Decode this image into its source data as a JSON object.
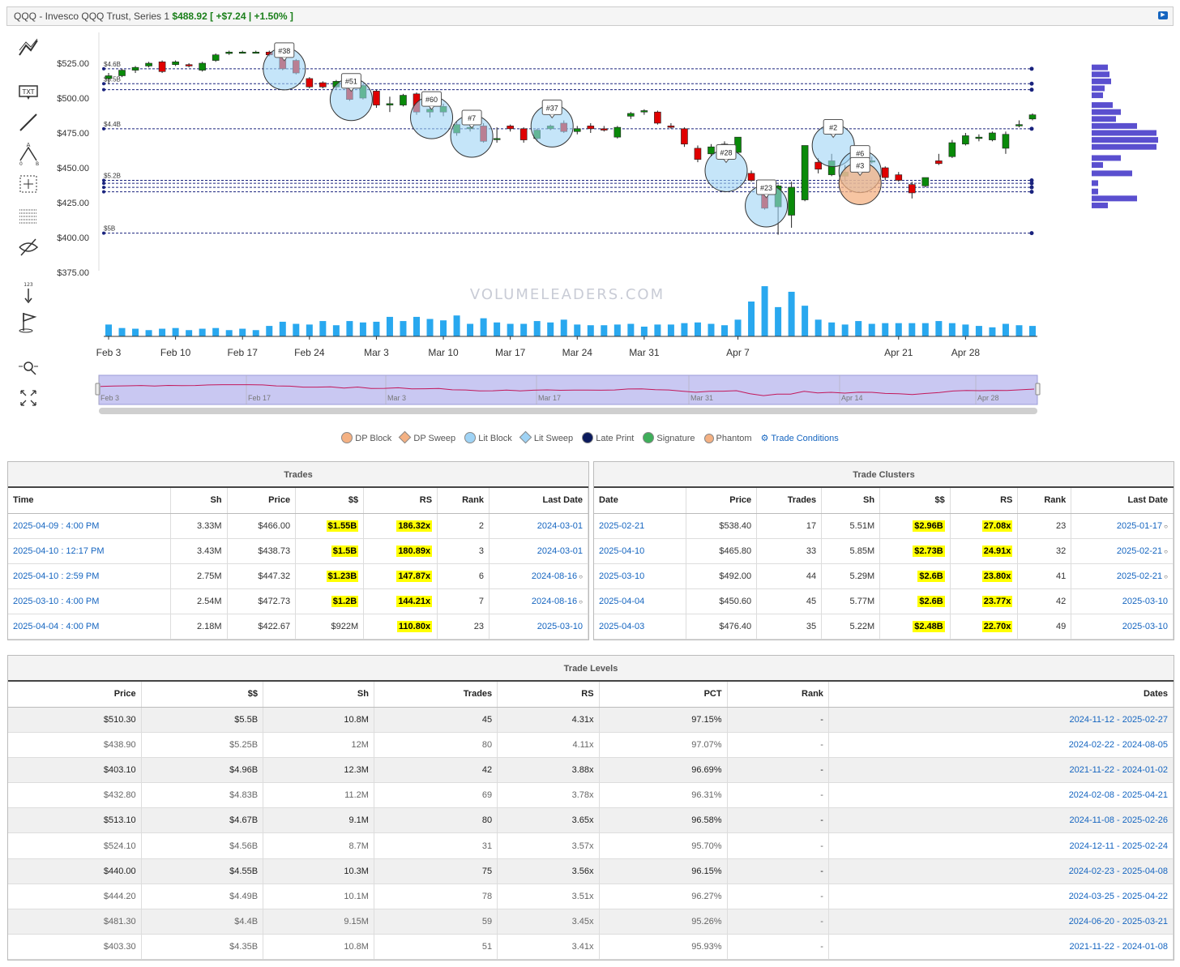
{
  "title": {
    "text": "QQQ - Invesco QQQ Trust, Series 1",
    "price": "$488.92",
    "change": "[ +$7.24 | +1.50% ]"
  },
  "toolbar": [
    "trendline-icon",
    "text-icon",
    "line-icon",
    "abc-pattern-icon",
    "crosshair-box-icon",
    "grid-icon",
    "hide-icon",
    "counter-icon",
    "flag-icon",
    "magnifier-icon",
    "expand-icon"
  ],
  "chart_data": {
    "type": "candlestick",
    "title": "",
    "y_ticks": [
      "$525.00",
      "$500.00",
      "$475.00",
      "$450.00",
      "$425.00",
      "$400.00",
      "$375.00"
    ],
    "ylim": [
      375,
      525
    ],
    "x_ticks": [
      "Feb 3",
      "Feb 10",
      "Feb 17",
      "Feb 24",
      "Mar 3",
      "Mar 10",
      "Mar 17",
      "Mar 24",
      "Mar 31",
      "Apr 7",
      "Apr 21",
      "Apr 28"
    ],
    "watermark": "VOLUMELEADERS.COM",
    "level_labels": [
      "$4.6B",
      "$5.5B",
      "$4.4B",
      "$5.2B",
      "$5B"
    ],
    "levels": [
      521,
      510.3,
      506,
      478,
      441,
      438.9,
      436,
      432.8,
      403.1
    ],
    "candles": [
      {
        "o": 514,
        "h": 518,
        "l": 510,
        "c": 516,
        "v": 8.5
      },
      {
        "o": 516,
        "h": 521,
        "l": 515,
        "c": 520,
        "v": 6
      },
      {
        "o": 520,
        "h": 523,
        "l": 518,
        "c": 522,
        "v": 5.5
      },
      {
        "o": 523,
        "h": 526,
        "l": 522,
        "c": 525,
        "v": 4.5
      },
      {
        "o": 526,
        "h": 527,
        "l": 518,
        "c": 519,
        "v": 5.5
      },
      {
        "o": 524,
        "h": 527,
        "l": 523,
        "c": 526,
        "v": 6
      },
      {
        "o": 524,
        "h": 525,
        "l": 522,
        "c": 523,
        "v": 4.5
      },
      {
        "o": 520,
        "h": 526,
        "l": 519,
        "c": 525,
        "v": 5.5
      },
      {
        "o": 527,
        "h": 532,
        "l": 526,
        "c": 531,
        "v": 6
      },
      {
        "o": 532,
        "h": 534,
        "l": 531,
        "c": 533,
        "v": 4.5
      },
      {
        "o": 533,
        "h": 534,
        "l": 532,
        "c": 533,
        "v": 5.5
      },
      {
        "o": 533,
        "h": 534,
        "l": 532,
        "c": 533,
        "v": 4.5
      },
      {
        "o": 533,
        "h": 534,
        "l": 530,
        "c": 531,
        "v": 7.5
      },
      {
        "o": 531,
        "h": 532,
        "l": 520,
        "c": 521,
        "v": 10.5
      },
      {
        "o": 527,
        "h": 528,
        "l": 517,
        "c": 518,
        "v": 9
      },
      {
        "o": 514,
        "h": 515,
        "l": 507,
        "c": 508,
        "v": 8.5
      },
      {
        "o": 511,
        "h": 512,
        "l": 507,
        "c": 508,
        "v": 11
      },
      {
        "o": 508,
        "h": 513,
        "l": 506,
        "c": 512,
        "v": 8
      },
      {
        "o": 512,
        "h": 515,
        "l": 498,
        "c": 499,
        "v": 11
      },
      {
        "o": 500,
        "h": 510,
        "l": 499,
        "c": 509,
        "v": 10
      },
      {
        "o": 505,
        "h": 506,
        "l": 493,
        "c": 495,
        "v": 10.5
      },
      {
        "o": 495,
        "h": 501,
        "l": 490,
        "c": 496,
        "v": 14
      },
      {
        "o": 495,
        "h": 503,
        "l": 494,
        "c": 502,
        "v": 11
      },
      {
        "o": 503,
        "h": 504,
        "l": 488,
        "c": 490,
        "v": 14
      },
      {
        "o": 490,
        "h": 496,
        "l": 486,
        "c": 492,
        "v": 12.5
      },
      {
        "o": 490,
        "h": 496,
        "l": 487,
        "c": 494,
        "v": 11.5
      },
      {
        "o": 475,
        "h": 483,
        "l": 473,
        "c": 481,
        "v": 15
      },
      {
        "o": 478,
        "h": 481,
        "l": 476,
        "c": 479,
        "v": 9
      },
      {
        "o": 480,
        "h": 482,
        "l": 468,
        "c": 469,
        "v": 13
      },
      {
        "o": 471,
        "h": 479,
        "l": 468,
        "c": 471,
        "v": 10
      },
      {
        "o": 480,
        "h": 481,
        "l": 476,
        "c": 478,
        "v": 9
      },
      {
        "o": 478,
        "h": 479,
        "l": 468,
        "c": 470,
        "v": 9
      },
      {
        "o": 471,
        "h": 478,
        "l": 469,
        "c": 477,
        "v": 11
      },
      {
        "o": 478,
        "h": 481,
        "l": 477,
        "c": 480,
        "v": 10
      },
      {
        "o": 482,
        "h": 484,
        "l": 475,
        "c": 476,
        "v": 12
      },
      {
        "o": 476,
        "h": 480,
        "l": 474,
        "c": 478,
        "v": 8.5
      },
      {
        "o": 480,
        "h": 482,
        "l": 475,
        "c": 478,
        "v": 8
      },
      {
        "o": 478,
        "h": 480,
        "l": 476,
        "c": 477,
        "v": 8
      },
      {
        "o": 472,
        "h": 480,
        "l": 471,
        "c": 479,
        "v": 8.5
      },
      {
        "o": 487,
        "h": 490,
        "l": 485,
        "c": 489,
        "v": 9
      },
      {
        "o": 490,
        "h": 492,
        "l": 488,
        "c": 491,
        "v": 7
      },
      {
        "o": 490,
        "h": 491,
        "l": 481,
        "c": 482,
        "v": 8.5
      },
      {
        "o": 480,
        "h": 482,
        "l": 478,
        "c": 479,
        "v": 8.5
      },
      {
        "o": 478,
        "h": 479,
        "l": 465,
        "c": 467,
        "v": 9.5
      },
      {
        "o": 464,
        "h": 466,
        "l": 454,
        "c": 456,
        "v": 10
      },
      {
        "o": 460,
        "h": 467,
        "l": 458,
        "c": 465,
        "v": 9
      },
      {
        "o": 465,
        "h": 469,
        "l": 463,
        "c": 467,
        "v": 8
      },
      {
        "o": 461,
        "h": 472,
        "l": 460,
        "c": 472,
        "v": 12
      },
      {
        "o": 446,
        "h": 448,
        "l": 440,
        "c": 441,
        "v": 25
      },
      {
        "o": 438,
        "h": 440,
        "l": 420,
        "c": 421,
        "v": 36
      },
      {
        "o": 422,
        "h": 438,
        "l": 402,
        "c": 437,
        "v": 21
      },
      {
        "o": 416,
        "h": 440,
        "l": 407,
        "c": 436,
        "v": 32
      },
      {
        "o": 427,
        "h": 466,
        "l": 426,
        "c": 466,
        "v": 22
      },
      {
        "o": 454,
        "h": 457,
        "l": 446,
        "c": 449,
        "v": 12
      },
      {
        "o": 445,
        "h": 460,
        "l": 444,
        "c": 455,
        "v": 10
      },
      {
        "o": 444,
        "h": 452,
        "l": 440,
        "c": 447,
        "v": 8.5
      },
      {
        "o": 463,
        "h": 465,
        "l": 455,
        "c": 456,
        "v": 11
      },
      {
        "o": 455,
        "h": 458,
        "l": 453,
        "c": 455,
        "v": 9
      },
      {
        "o": 450,
        "h": 451,
        "l": 441,
        "c": 443,
        "v": 9.5
      },
      {
        "o": 445,
        "h": 447,
        "l": 440,
        "c": 441,
        "v": 9.5
      },
      {
        "o": 438,
        "h": 440,
        "l": 428,
        "c": 432,
        "v": 9.5
      },
      {
        "o": 437,
        "h": 443,
        "l": 436,
        "c": 443,
        "v": 9.5
      },
      {
        "o": 455,
        "h": 460,
        "l": 452,
        "c": 453,
        "v": 11
      },
      {
        "o": 458,
        "h": 470,
        "l": 457,
        "c": 468,
        "v": 9.5
      },
      {
        "o": 467,
        "h": 475,
        "l": 466,
        "c": 473,
        "v": 8.5
      },
      {
        "o": 471,
        "h": 474,
        "l": 469,
        "c": 472,
        "v": 7.5
      },
      {
        "o": 470,
        "h": 476,
        "l": 469,
        "c": 475,
        "v": 6.5
      },
      {
        "o": 464,
        "h": 476,
        "l": 460,
        "c": 474,
        "v": 9
      },
      {
        "o": 480,
        "h": 484,
        "l": 479,
        "c": 481,
        "v": 8
      },
      {
        "o": 485,
        "h": 489,
        "l": 484,
        "c": 488,
        "v": 7.5
      }
    ],
    "bubbles": [
      {
        "label": "#38",
        "i": 13,
        "p": 521,
        "r": 26,
        "kind": "lit"
      },
      {
        "label": "#51",
        "i": 18,
        "p": 499,
        "r": 26,
        "kind": "lit"
      },
      {
        "label": "#60",
        "i": 24,
        "p": 486,
        "r": 26,
        "kind": "lit"
      },
      {
        "label": "#7",
        "i": 27,
        "p": 472.7,
        "r": 26,
        "kind": "lit"
      },
      {
        "label": "#37",
        "i": 33,
        "p": 480,
        "r": 26,
        "kind": "lit"
      },
      {
        "label": "#28",
        "i": 46,
        "p": 448,
        "r": 26,
        "kind": "lit"
      },
      {
        "label": "#23",
        "i": 49,
        "p": 422.7,
        "r": 26,
        "kind": "lit"
      },
      {
        "label": "#2",
        "i": 54,
        "p": 466,
        "r": 26,
        "kind": "lit"
      },
      {
        "label": "#6",
        "i": 56,
        "p": 447.3,
        "r": 26,
        "kind": "lit"
      },
      {
        "label": "#3",
        "i": 56,
        "p": 438.7,
        "r": 26,
        "kind": "phantom"
      }
    ],
    "volume_profile": [
      {
        "p": 522,
        "w": 20
      },
      {
        "p": 517,
        "w": 22
      },
      {
        "p": 512,
        "w": 24
      },
      {
        "p": 507,
        "w": 16
      },
      {
        "p": 502,
        "w": 14
      },
      {
        "p": 495,
        "w": 26
      },
      {
        "p": 490,
        "w": 36
      },
      {
        "p": 485,
        "w": 30
      },
      {
        "p": 480,
        "w": 56
      },
      {
        "p": 475,
        "w": 80
      },
      {
        "p": 470,
        "w": 82
      },
      {
        "p": 465,
        "w": 80
      },
      {
        "p": 457,
        "w": 36
      },
      {
        "p": 452,
        "w": 14
      },
      {
        "p": 446,
        "w": 50
      },
      {
        "p": 439,
        "w": 8
      },
      {
        "p": 433,
        "w": 8
      },
      {
        "p": 428,
        "w": 56
      },
      {
        "p": 423,
        "w": 20
      }
    ],
    "navigator_labels": [
      "Feb 3",
      "Feb 17",
      "Mar 3",
      "Mar 17",
      "Mar 31",
      "Apr 14",
      "Apr 28"
    ]
  },
  "legend": {
    "dp_block": "DP Block",
    "dp_sweep": "DP Sweep",
    "lit_block": "Lit Block",
    "lit_sweep": "Lit Sweep",
    "late_print": "Late Print",
    "signature": "Signature",
    "phantom": "Phantom",
    "trade_conditions": "Trade Conditions"
  },
  "trades": {
    "title": "Trades",
    "headers": [
      "Time",
      "Sh",
      "Price",
      "$$",
      "RS",
      "Rank",
      "Last Date"
    ],
    "rows": [
      [
        "2025-04-09 : 4:00 PM",
        "3.33M",
        "$466.00",
        "$1.55B",
        "186.32x",
        "2",
        "2024-03-01"
      ],
      [
        "2025-04-10 : 12:17 PM",
        "3.43M",
        "$438.73",
        "$1.5B",
        "180.89x",
        "3",
        "2024-03-01"
      ],
      [
        "2025-04-10 : 2:59 PM",
        "2.75M",
        "$447.32",
        "$1.23B",
        "147.87x",
        "6",
        "2024-08-16"
      ],
      [
        "2025-03-10 : 4:00 PM",
        "2.54M",
        "$472.73",
        "$1.2B",
        "144.21x",
        "7",
        "2024-08-16"
      ],
      [
        "2025-04-04 : 4:00 PM",
        "2.18M",
        "$422.67",
        "$922M",
        "110.80x",
        "23",
        "2025-03-10"
      ]
    ]
  },
  "clusters": {
    "title": "Trade Clusters",
    "headers": [
      "Date",
      "Price",
      "Trades",
      "Sh",
      "$$",
      "RS",
      "Rank",
      "Last Date"
    ],
    "rows": [
      [
        "2025-02-21",
        "$538.40",
        "17",
        "5.51M",
        "$2.96B",
        "27.08x",
        "23",
        "2025-01-17"
      ],
      [
        "2025-04-10",
        "$465.80",
        "33",
        "5.85M",
        "$2.73B",
        "24.91x",
        "32",
        "2025-02-21"
      ],
      [
        "2025-03-10",
        "$492.00",
        "44",
        "5.29M",
        "$2.6B",
        "23.80x",
        "41",
        "2025-02-21"
      ],
      [
        "2025-04-04",
        "$450.60",
        "45",
        "5.77M",
        "$2.6B",
        "23.77x",
        "42",
        "2025-03-10"
      ],
      [
        "2025-04-03",
        "$476.40",
        "35",
        "5.22M",
        "$2.48B",
        "22.70x",
        "49",
        "2025-03-10"
      ]
    ]
  },
  "levels": {
    "title": "Trade Levels",
    "headers": [
      "Price",
      "$$",
      "Sh",
      "Trades",
      "RS",
      "PCT",
      "Rank",
      "Dates"
    ],
    "rows": [
      [
        "$510.30",
        "$5.5B",
        "10.8M",
        "45",
        "4.31x",
        "97.15%",
        "-",
        "2024-11-12 - 2025-02-27"
      ],
      [
        "$438.90",
        "$5.25B",
        "12M",
        "80",
        "4.11x",
        "97.07%",
        "-",
        "2024-02-22 - 2024-08-05"
      ],
      [
        "$403.10",
        "$4.96B",
        "12.3M",
        "42",
        "3.88x",
        "96.69%",
        "-",
        "2021-11-22 - 2024-01-02"
      ],
      [
        "$432.80",
        "$4.83B",
        "11.2M",
        "69",
        "3.78x",
        "96.31%",
        "-",
        "2024-02-08 - 2025-04-21"
      ],
      [
        "$513.10",
        "$4.67B",
        "9.1M",
        "80",
        "3.65x",
        "96.58%",
        "-",
        "2024-11-08 - 2025-02-26"
      ],
      [
        "$524.10",
        "$4.56B",
        "8.7M",
        "31",
        "3.57x",
        "95.70%",
        "-",
        "2024-12-11 - 2025-02-24"
      ],
      [
        "$440.00",
        "$4.55B",
        "10.3M",
        "75",
        "3.56x",
        "96.15%",
        "-",
        "2024-02-23 - 2025-04-08"
      ],
      [
        "$444.20",
        "$4.49B",
        "10.1M",
        "78",
        "3.51x",
        "96.27%",
        "-",
        "2024-03-25 - 2025-04-22"
      ],
      [
        "$481.30",
        "$4.4B",
        "9.15M",
        "59",
        "3.45x",
        "95.26%",
        "-",
        "2024-06-20 - 2025-03-21"
      ],
      [
        "$403.30",
        "$4.35B",
        "10.8M",
        "51",
        "3.41x",
        "95.93%",
        "-",
        "2021-11-22 - 2024-01-08"
      ]
    ]
  }
}
